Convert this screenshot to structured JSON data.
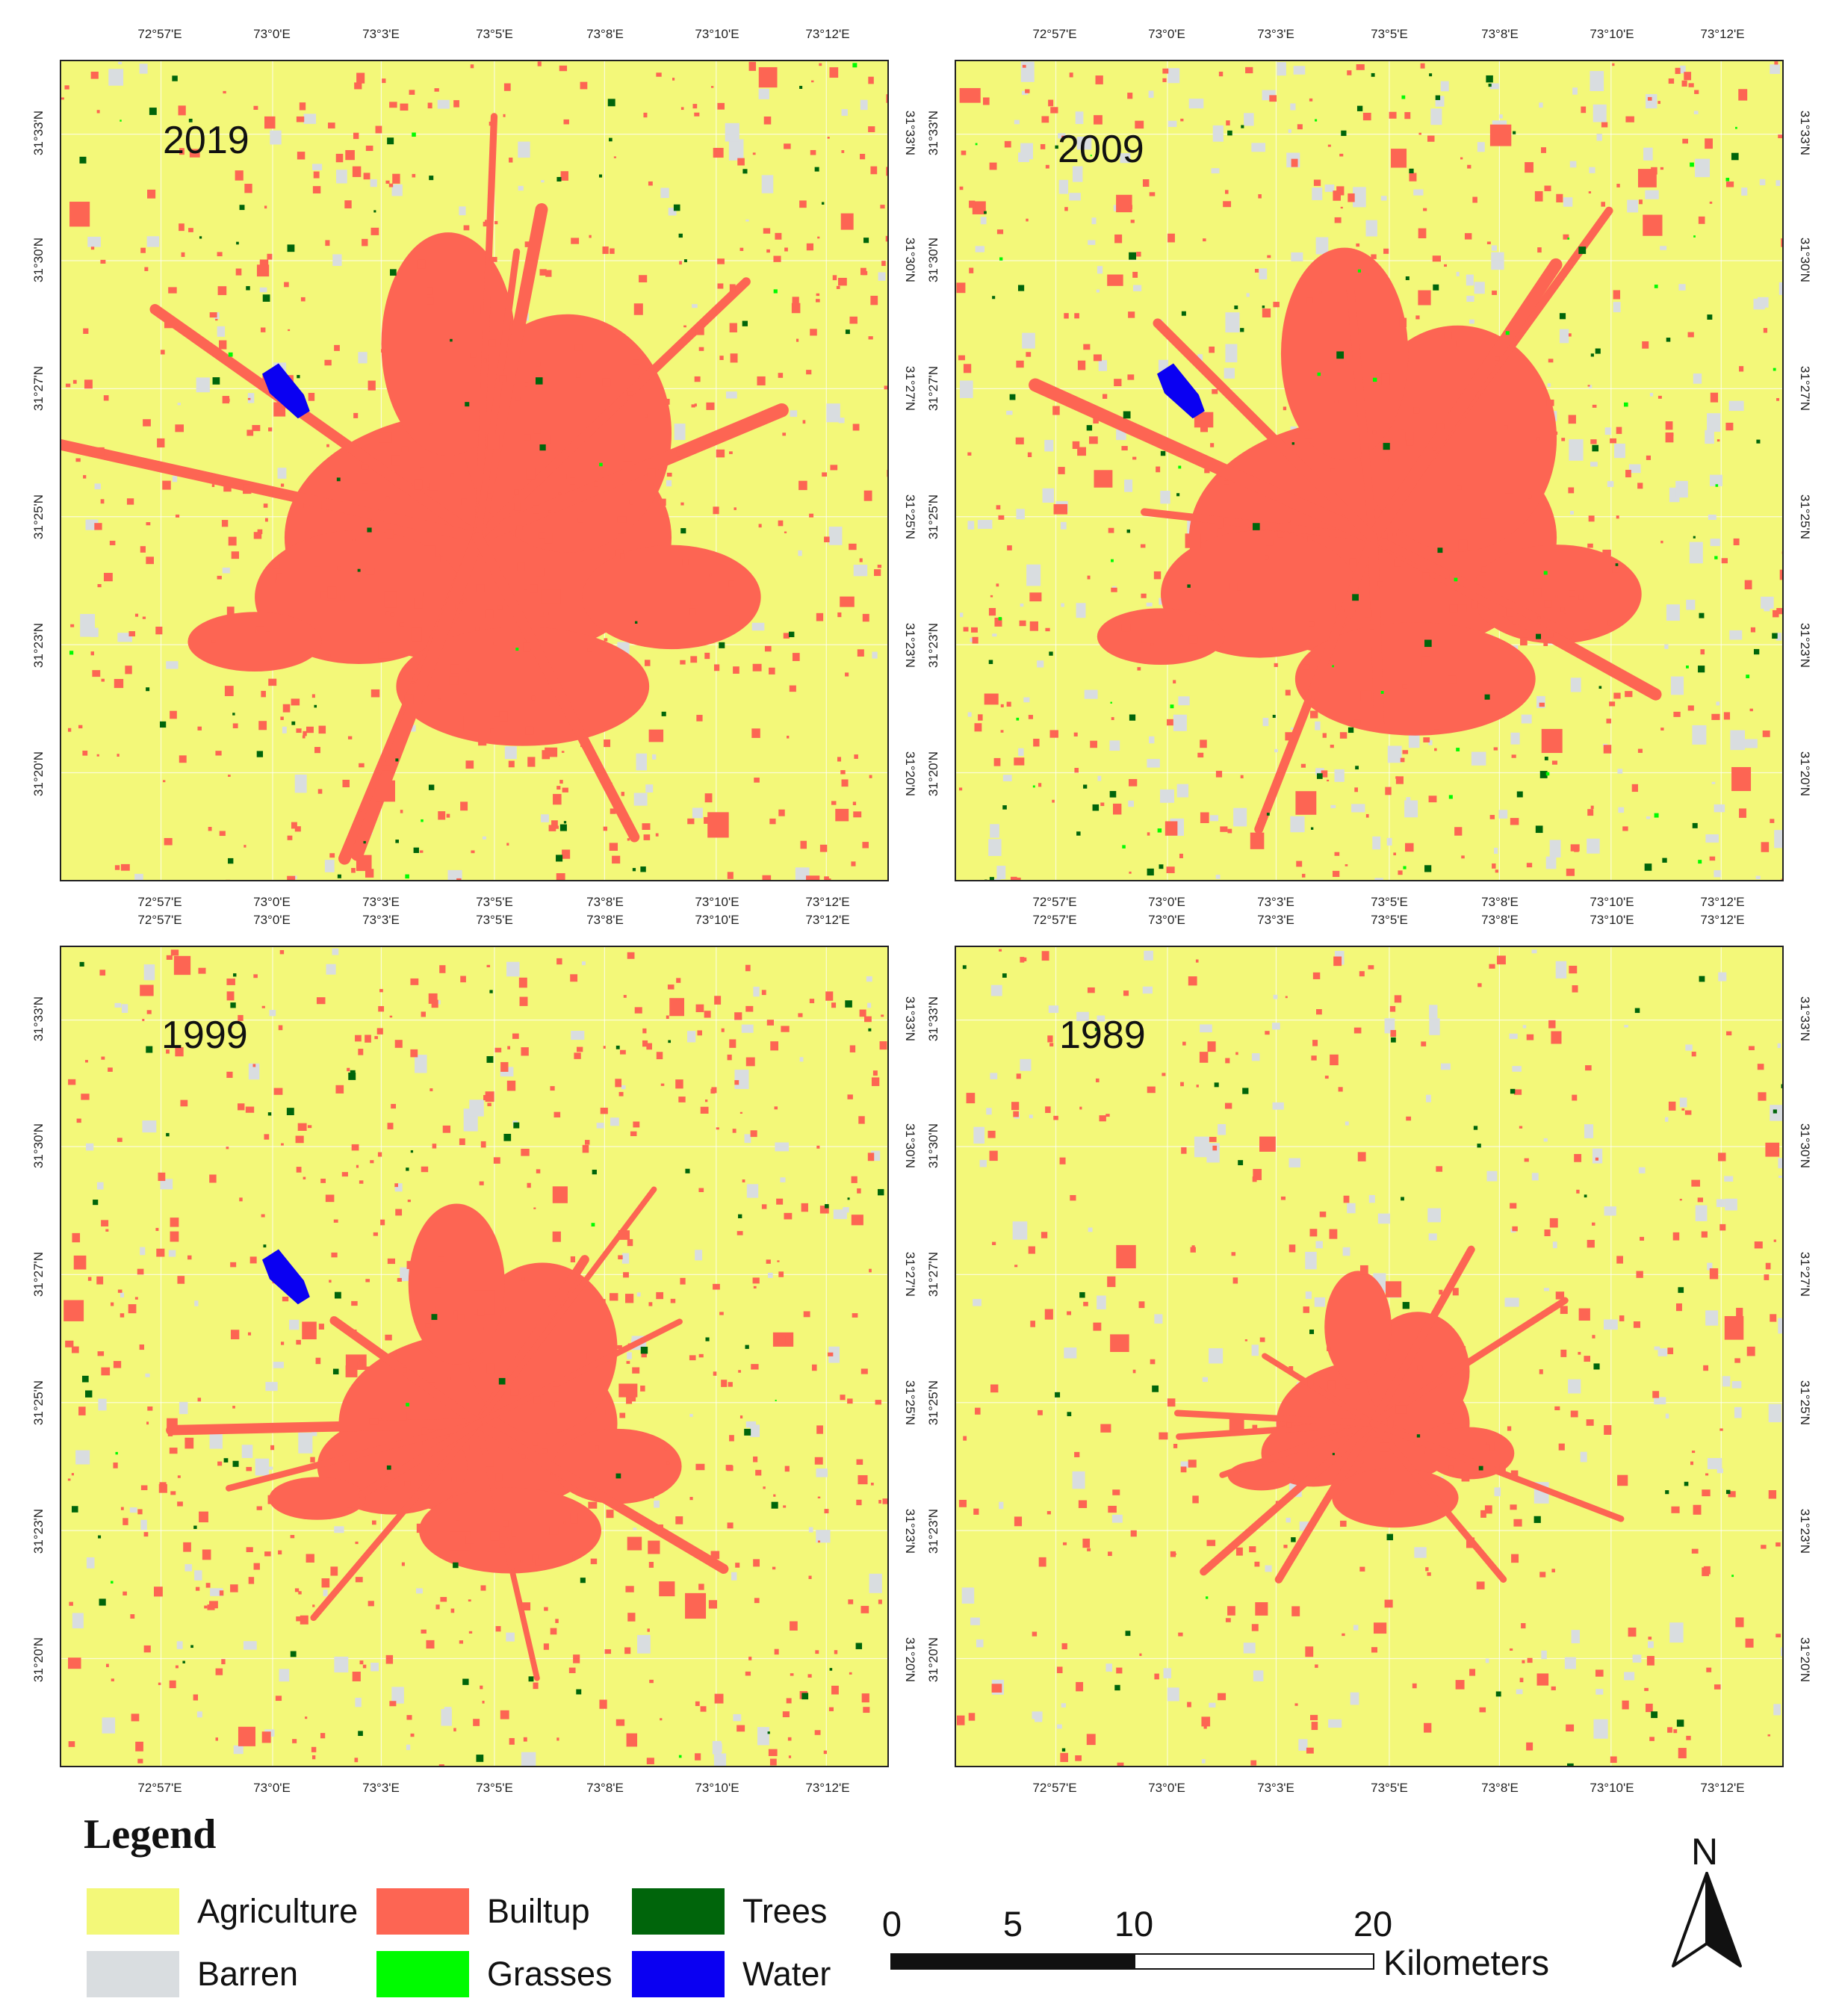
{
  "lon_ticks": [
    "72°57'E",
    "73°0'E",
    "73°3'E",
    "73°5'E",
    "73°8'E",
    "73°10'E",
    "73°12'E"
  ],
  "lat_ticks": [
    "31°33'N",
    "31°30'N",
    "31°27'N",
    "31°25'N",
    "31°23'N",
    "31°20'N"
  ],
  "panels": [
    {
      "year": "2019"
    },
    {
      "year": "2009"
    },
    {
      "year": "1999"
    },
    {
      "year": "1989"
    }
  ],
  "legend": {
    "title": "Legend",
    "items": [
      {
        "label": "Agriculture",
        "color": "#f3f879"
      },
      {
        "label": "Builtup",
        "color": "#fd6553"
      },
      {
        "label": "Trees",
        "color": "#00650b"
      },
      {
        "label": "Barren",
        "color": "#d9dde0"
      },
      {
        "label": "Grasses",
        "color": "#00fb00"
      },
      {
        "label": "Water",
        "color": "#0a00f2"
      }
    ]
  },
  "scale_bar": {
    "labels": [
      "0",
      "5",
      "10",
      "20"
    ],
    "units": "Kilometers"
  },
  "north_arrow": {
    "letter": "N",
    "icon": "north-arrow-icon"
  }
}
